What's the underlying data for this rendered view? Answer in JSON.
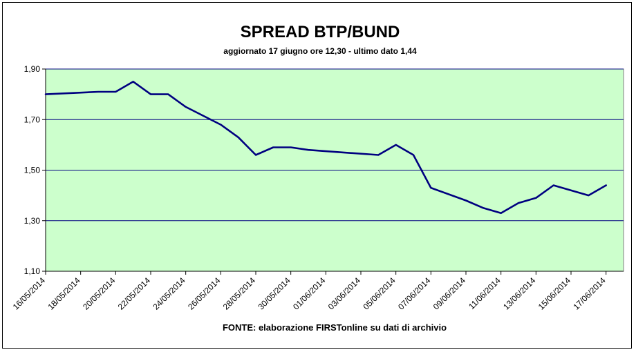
{
  "chart_data": {
    "type": "line",
    "title": "SPREAD BTP/BUND",
    "subtitle": "aggiornato 17 giugno ore 12,30 - ultimo dato 1,44",
    "source_note": "FONTE:  elaborazione FIRSTonline su dati di archivio",
    "xlabel": "",
    "ylabel": "",
    "ylim": [
      1.1,
      1.9
    ],
    "yticks": [
      "1,10",
      "1,30",
      "1,50",
      "1,70",
      "1,90"
    ],
    "xticks": [
      "16/05/2014",
      "18/05/2014",
      "20/05/2014",
      "22/05/2014",
      "24/05/2014",
      "26/05/2014",
      "28/05/2014",
      "30/05/2014",
      "01/06/2014",
      "03/06/2014",
      "05/06/2014",
      "07/06/2014",
      "09/06/2014",
      "11/06/2014",
      "13/06/2014",
      "15/06/2014",
      "17/06/2014"
    ],
    "grid": true,
    "legend": "none",
    "plot_background": "#ccffcc",
    "line_color": "#000080",
    "grid_color": "#000080",
    "series": [
      {
        "points": [
          {
            "x": "16/05/2014",
            "y": 1.8
          },
          {
            "x": "19/05/2014",
            "y": 1.81
          },
          {
            "x": "20/05/2014",
            "y": 1.81
          },
          {
            "x": "21/05/2014",
            "y": 1.85
          },
          {
            "x": "22/05/2014",
            "y": 1.8
          },
          {
            "x": "23/05/2014",
            "y": 1.8
          },
          {
            "x": "24/05/2014",
            "y": 1.75
          },
          {
            "x": "26/05/2014",
            "y": 1.68
          },
          {
            "x": "27/05/2014",
            "y": 1.63
          },
          {
            "x": "28/05/2014",
            "y": 1.56
          },
          {
            "x": "29/05/2014",
            "y": 1.59
          },
          {
            "x": "30/05/2014",
            "y": 1.59
          },
          {
            "x": "31/05/2014",
            "y": 1.58
          },
          {
            "x": "02/06/2014",
            "y": 1.57
          },
          {
            "x": "04/06/2014",
            "y": 1.56
          },
          {
            "x": "05/06/2014",
            "y": 1.6
          },
          {
            "x": "06/06/2014",
            "y": 1.56
          },
          {
            "x": "07/06/2014",
            "y": 1.43
          },
          {
            "x": "09/06/2014",
            "y": 1.38
          },
          {
            "x": "10/06/2014",
            "y": 1.35
          },
          {
            "x": "11/06/2014",
            "y": 1.33
          },
          {
            "x": "12/06/2014",
            "y": 1.37
          },
          {
            "x": "13/06/2014",
            "y": 1.39
          },
          {
            "x": "14/06/2014",
            "y": 1.44
          },
          {
            "x": "16/06/2014",
            "y": 1.4
          },
          {
            "x": "17/06/2014",
            "y": 1.44
          }
        ]
      }
    ]
  }
}
